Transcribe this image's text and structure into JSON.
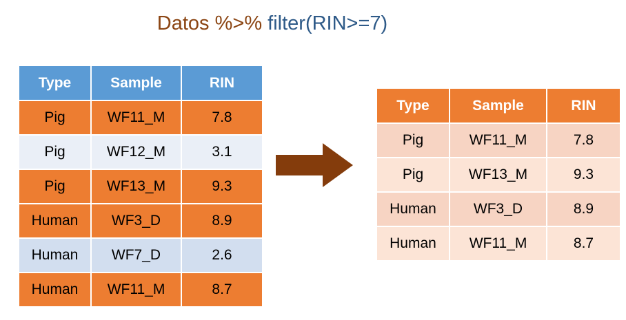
{
  "title": {
    "lead": "Datos %>% ",
    "rest": "filter(RIN>=7)"
  },
  "left_table": {
    "headers": [
      "Type",
      "Sample",
      "RIN"
    ],
    "rows": [
      [
        "Pig",
        "WF11_M",
        "7.8"
      ],
      [
        "Pig",
        "WF12_M",
        "3.1"
      ],
      [
        "Pig",
        "WF13_M",
        "9.3"
      ],
      [
        "Human",
        "WF3_D",
        "8.9"
      ],
      [
        "Human",
        "WF7_D",
        "2.6"
      ],
      [
        "Human",
        "WF11_M",
        "8.7"
      ]
    ]
  },
  "right_table": {
    "headers": [
      "Type",
      "Sample",
      "RIN"
    ],
    "rows": [
      [
        "Pig",
        "WF11_M",
        "7.8"
      ],
      [
        "Pig",
        "WF13_M",
        "9.3"
      ],
      [
        "Human",
        "WF3_D",
        "8.9"
      ],
      [
        "Human",
        "WF11_M",
        "8.7"
      ]
    ]
  },
  "colors": {
    "title_lead": "#8B4513",
    "title_rest": "#2E5A88",
    "header_blue": "#5B9BD5",
    "orange": "#ED7D31",
    "arrow": "#843C0C"
  },
  "icons": {
    "arrow": "right-arrow-icon"
  }
}
